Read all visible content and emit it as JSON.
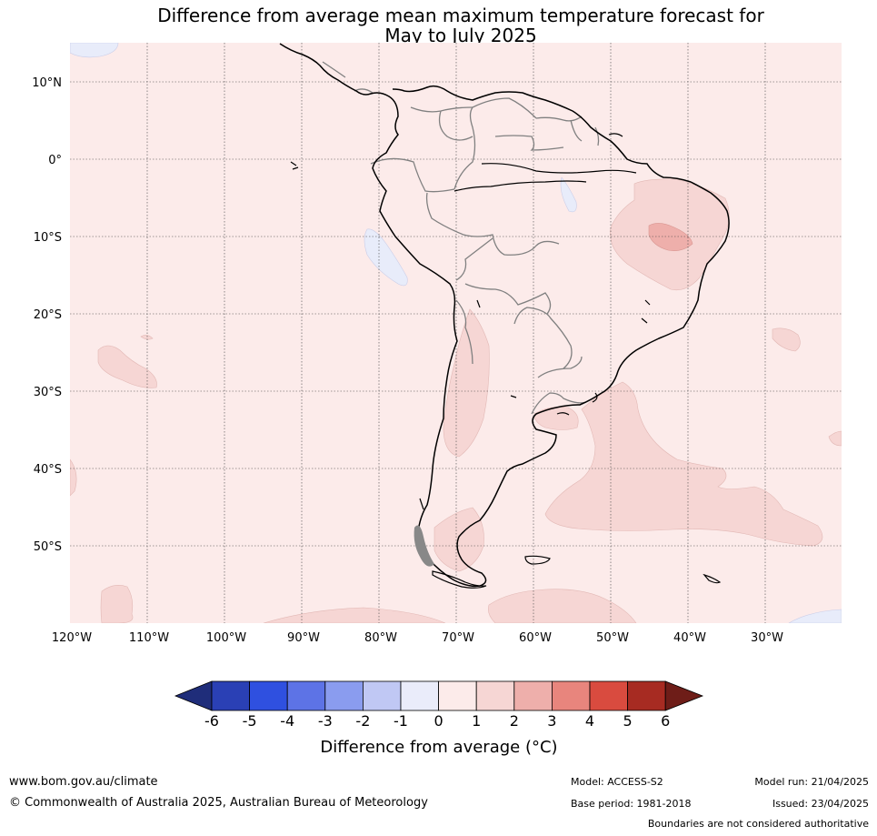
{
  "title": {
    "line1": "Difference from average mean maximum temperature forecast for",
    "line2": "May to July 2025"
  },
  "map": {
    "lon_ticks": [
      "120°W",
      "110°W",
      "100°W",
      "90°W",
      "80°W",
      "70°W",
      "60°W",
      "50°W",
      "40°W",
      "30°W"
    ],
    "lat_ticks": [
      "10°N",
      "0°",
      "10°S",
      "20°S",
      "30°S",
      "40°S",
      "50°S"
    ],
    "colors": {
      "ocean_fill": "#fcebea",
      "pale_red": "#f6d6d4",
      "mid_red": "#eeafab",
      "pale_blue": "#e8ecfa",
      "coast": "#000000",
      "border": "#808080"
    }
  },
  "colorbar": {
    "title": "Difference from average (°C)",
    "labels": [
      "-6",
      "-5",
      "-4",
      "-3",
      "-2",
      "-1",
      "0",
      "1",
      "2",
      "3",
      "4",
      "5",
      "6"
    ],
    "colors": [
      "#1f2d7a",
      "#2a40b5",
      "#2f50e0",
      "#5d73e6",
      "#8a9cef",
      "#c0c8f4",
      "#eaecfa",
      "#fcebea",
      "#f6d6d4",
      "#eeafab",
      "#e8857d",
      "#d94b3f",
      "#a72b22",
      "#6e1d18"
    ]
  },
  "footer": {
    "website": "www.bom.gov.au/climate",
    "copyright": "© Commonwealth of Australia 2025, Australian Bureau of Meteorology",
    "model": "Model: ACCESS-S2",
    "base_period": "Base period: 1981-2018",
    "model_run": "Model run: 21/04/2025",
    "issued": "Issued: 23/04/2025",
    "disclaimer": "Boundaries are not considered authoritative"
  }
}
